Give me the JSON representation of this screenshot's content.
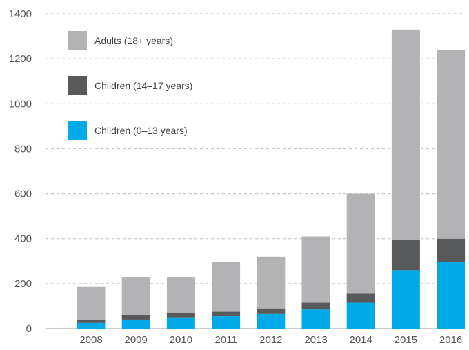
{
  "chart_data": {
    "type": "bar",
    "stacked": true,
    "categories": [
      "2008",
      "2009",
      "2010",
      "2011",
      "2012",
      "2013",
      "2014",
      "2015",
      "2016"
    ],
    "series": [
      {
        "name": "Children (0–13 years)",
        "color": "#00a9e8",
        "values": [
          25,
          40,
          50,
          55,
          65,
          85,
          115,
          260,
          295
        ]
      },
      {
        "name": "Children (14–17 years)",
        "color": "#58595b",
        "values": [
          15,
          20,
          20,
          20,
          25,
          30,
          40,
          135,
          105
        ]
      },
      {
        "name": "Adults (18+ years)",
        "color": "#b3b3b6",
        "values": [
          145,
          170,
          160,
          220,
          230,
          295,
          445,
          935,
          840
        ]
      }
    ],
    "legend_order": [
      2,
      1,
      0
    ],
    "legend_position": "top-left",
    "ylim": [
      0,
      1400
    ],
    "yticks": [
      0,
      200,
      400,
      600,
      800,
      1000,
      1200,
      1400
    ],
    "grid": "horizontal-dashed",
    "title": "",
    "xlabel": "",
    "ylabel": ""
  }
}
